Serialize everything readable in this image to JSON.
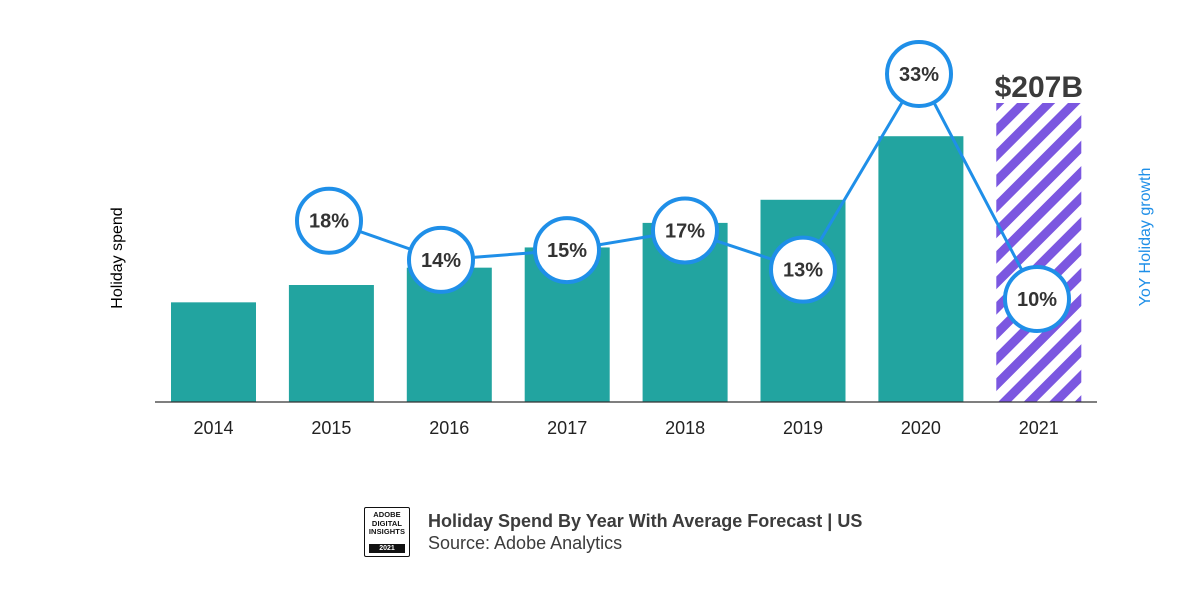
{
  "chart_data": {
    "type": "bar",
    "title": "Holiday Spend By Year With Average Forecast | US",
    "source": "Source: Adobe Analytics",
    "ylabel": "Holiday spend",
    "y2label": "YoY Holiday growth",
    "categories": [
      "2014",
      "2015",
      "2016",
      "2017",
      "2018",
      "2019",
      "2020",
      "2021"
    ],
    "series": [
      {
        "type": "bar",
        "values": [
          69,
          81,
          93,
          107,
          124,
          140,
          184,
          207
        ],
        "forecast_index": 7,
        "color": "#22a4a0",
        "forecast_color": "#7b57e0"
      },
      {
        "type": "line",
        "values": [
          null,
          18,
          14,
          15,
          17,
          13,
          33,
          10
        ],
        "labels": [
          "",
          "18%",
          "14%",
          "15%",
          "17%",
          "13%",
          "33%",
          "10%"
        ],
        "color": "#1f8fe8"
      }
    ],
    "callout": {
      "category": "2021",
      "text": "$207B"
    },
    "ylim": [
      0,
      207
    ],
    "y2lim": [
      0,
      35
    ],
    "grid": false,
    "legend": "none"
  },
  "badge": {
    "lines": [
      "ADOBE",
      "DIGITAL",
      "INSIGHTS"
    ],
    "year": "2021"
  }
}
